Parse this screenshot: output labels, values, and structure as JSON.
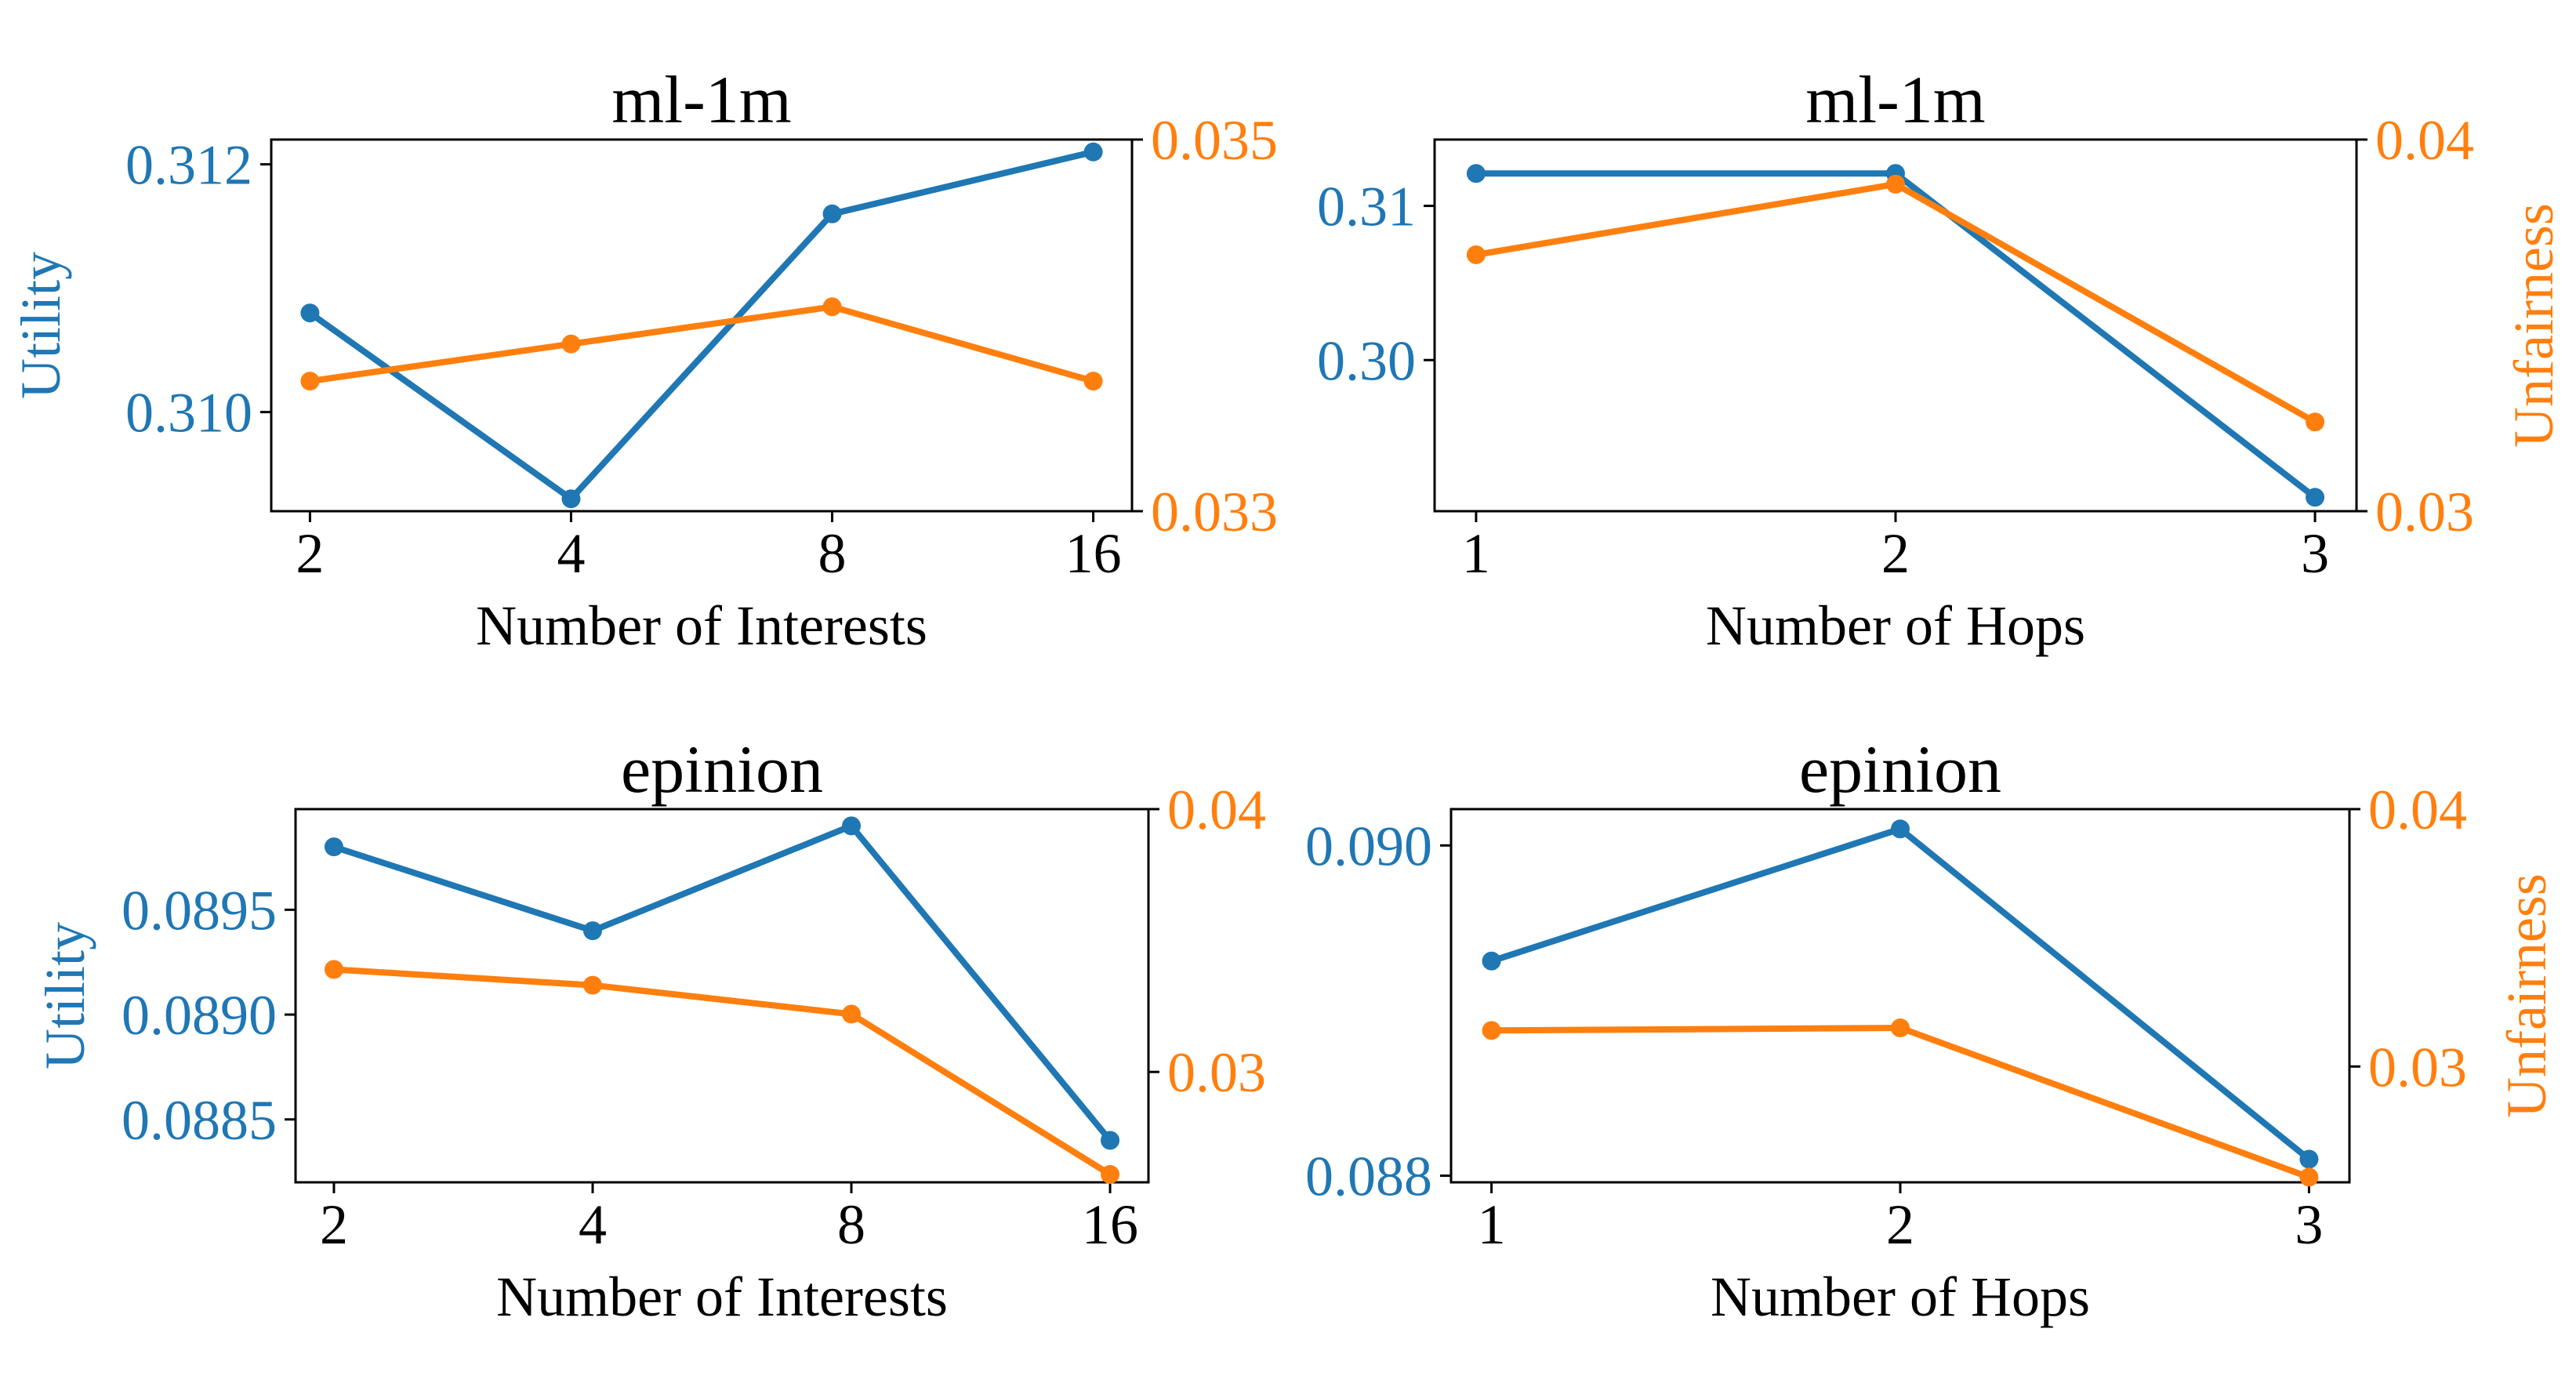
{
  "colors": {
    "utility": "#1f77b4",
    "unfairness": "#ff7f0e",
    "text": "#000000"
  },
  "chart_data": [
    {
      "type": "line",
      "title": "ml-1m",
      "xlabel": "Number of Interests",
      "ylabel_left": "Utility",
      "ylabel_right": "",
      "categories": [
        "2",
        "4",
        "8",
        "16"
      ],
      "yticks_left": [
        "0.310",
        "0.312"
      ],
      "ylim_left": [
        0.3092,
        0.3122
      ],
      "yticks_right": [
        "0.033",
        "0.035"
      ],
      "ylim_right": [
        0.033,
        0.035
      ],
      "series": [
        {
          "axis": "left",
          "color": "#1f77b4",
          "values": [
            0.3108,
            0.3093,
            0.3116,
            0.3121
          ]
        },
        {
          "axis": "right",
          "color": "#ff7f0e",
          "values": [
            0.0337,
            0.0339,
            0.0341,
            0.0337
          ]
        }
      ]
    },
    {
      "type": "line",
      "title": "ml-1m",
      "xlabel": "Number of Hops",
      "ylabel_left": "",
      "ylabel_right": "Unfairness",
      "categories": [
        "1",
        "2",
        "3"
      ],
      "yticks_left": [
        "0.30",
        "0.31"
      ],
      "ylim_left": [
        0.2902,
        0.3143
      ],
      "yticks_right": [
        "0.03",
        "0.04"
      ],
      "ylim_right": [
        0.03,
        0.04
      ],
      "series": [
        {
          "axis": "left",
          "color": "#1f77b4",
          "values": [
            0.3121,
            0.3121,
            0.2911
          ]
        },
        {
          "axis": "right",
          "color": "#ff7f0e",
          "values": [
            0.0369,
            0.0388,
            0.0324
          ]
        }
      ]
    },
    {
      "type": "line",
      "title": "epinion",
      "xlabel": "Number of Interests",
      "ylabel_left": "Utility",
      "ylabel_right": "",
      "categories": [
        "2",
        "4",
        "8",
        "16"
      ],
      "yticks_left": [
        "0.0885",
        "0.0890",
        "0.0895"
      ],
      "ylim_left": [
        0.0882,
        0.08998
      ],
      "yticks_right": [
        "0.03",
        "0.04"
      ],
      "ylim_right": [
        0.0258,
        0.04
      ],
      "series": [
        {
          "axis": "left",
          "color": "#1f77b4",
          "values": [
            0.0898,
            0.0894,
            0.0899,
            0.0884
          ]
        },
        {
          "axis": "right",
          "color": "#ff7f0e",
          "values": [
            0.0339,
            0.0333,
            0.0322,
            0.0261
          ]
        }
      ]
    },
    {
      "type": "line",
      "title": "epinion",
      "xlabel": "Number of Hops",
      "ylabel_left": "",
      "ylabel_right": "Unfairness",
      "categories": [
        "1",
        "2",
        "3"
      ],
      "yticks_left": [
        "0.088",
        "0.090"
      ],
      "ylim_left": [
        0.08796,
        0.09022
      ],
      "yticks_right": [
        "0.03",
        "0.04"
      ],
      "ylim_right": [
        0.0255,
        0.04
      ],
      "series": [
        {
          "axis": "left",
          "color": "#1f77b4",
          "values": [
            0.0893,
            0.0901,
            0.0881
          ]
        },
        {
          "axis": "right",
          "color": "#ff7f0e",
          "values": [
            0.0314,
            0.0315,
            0.0257
          ]
        }
      ]
    }
  ]
}
